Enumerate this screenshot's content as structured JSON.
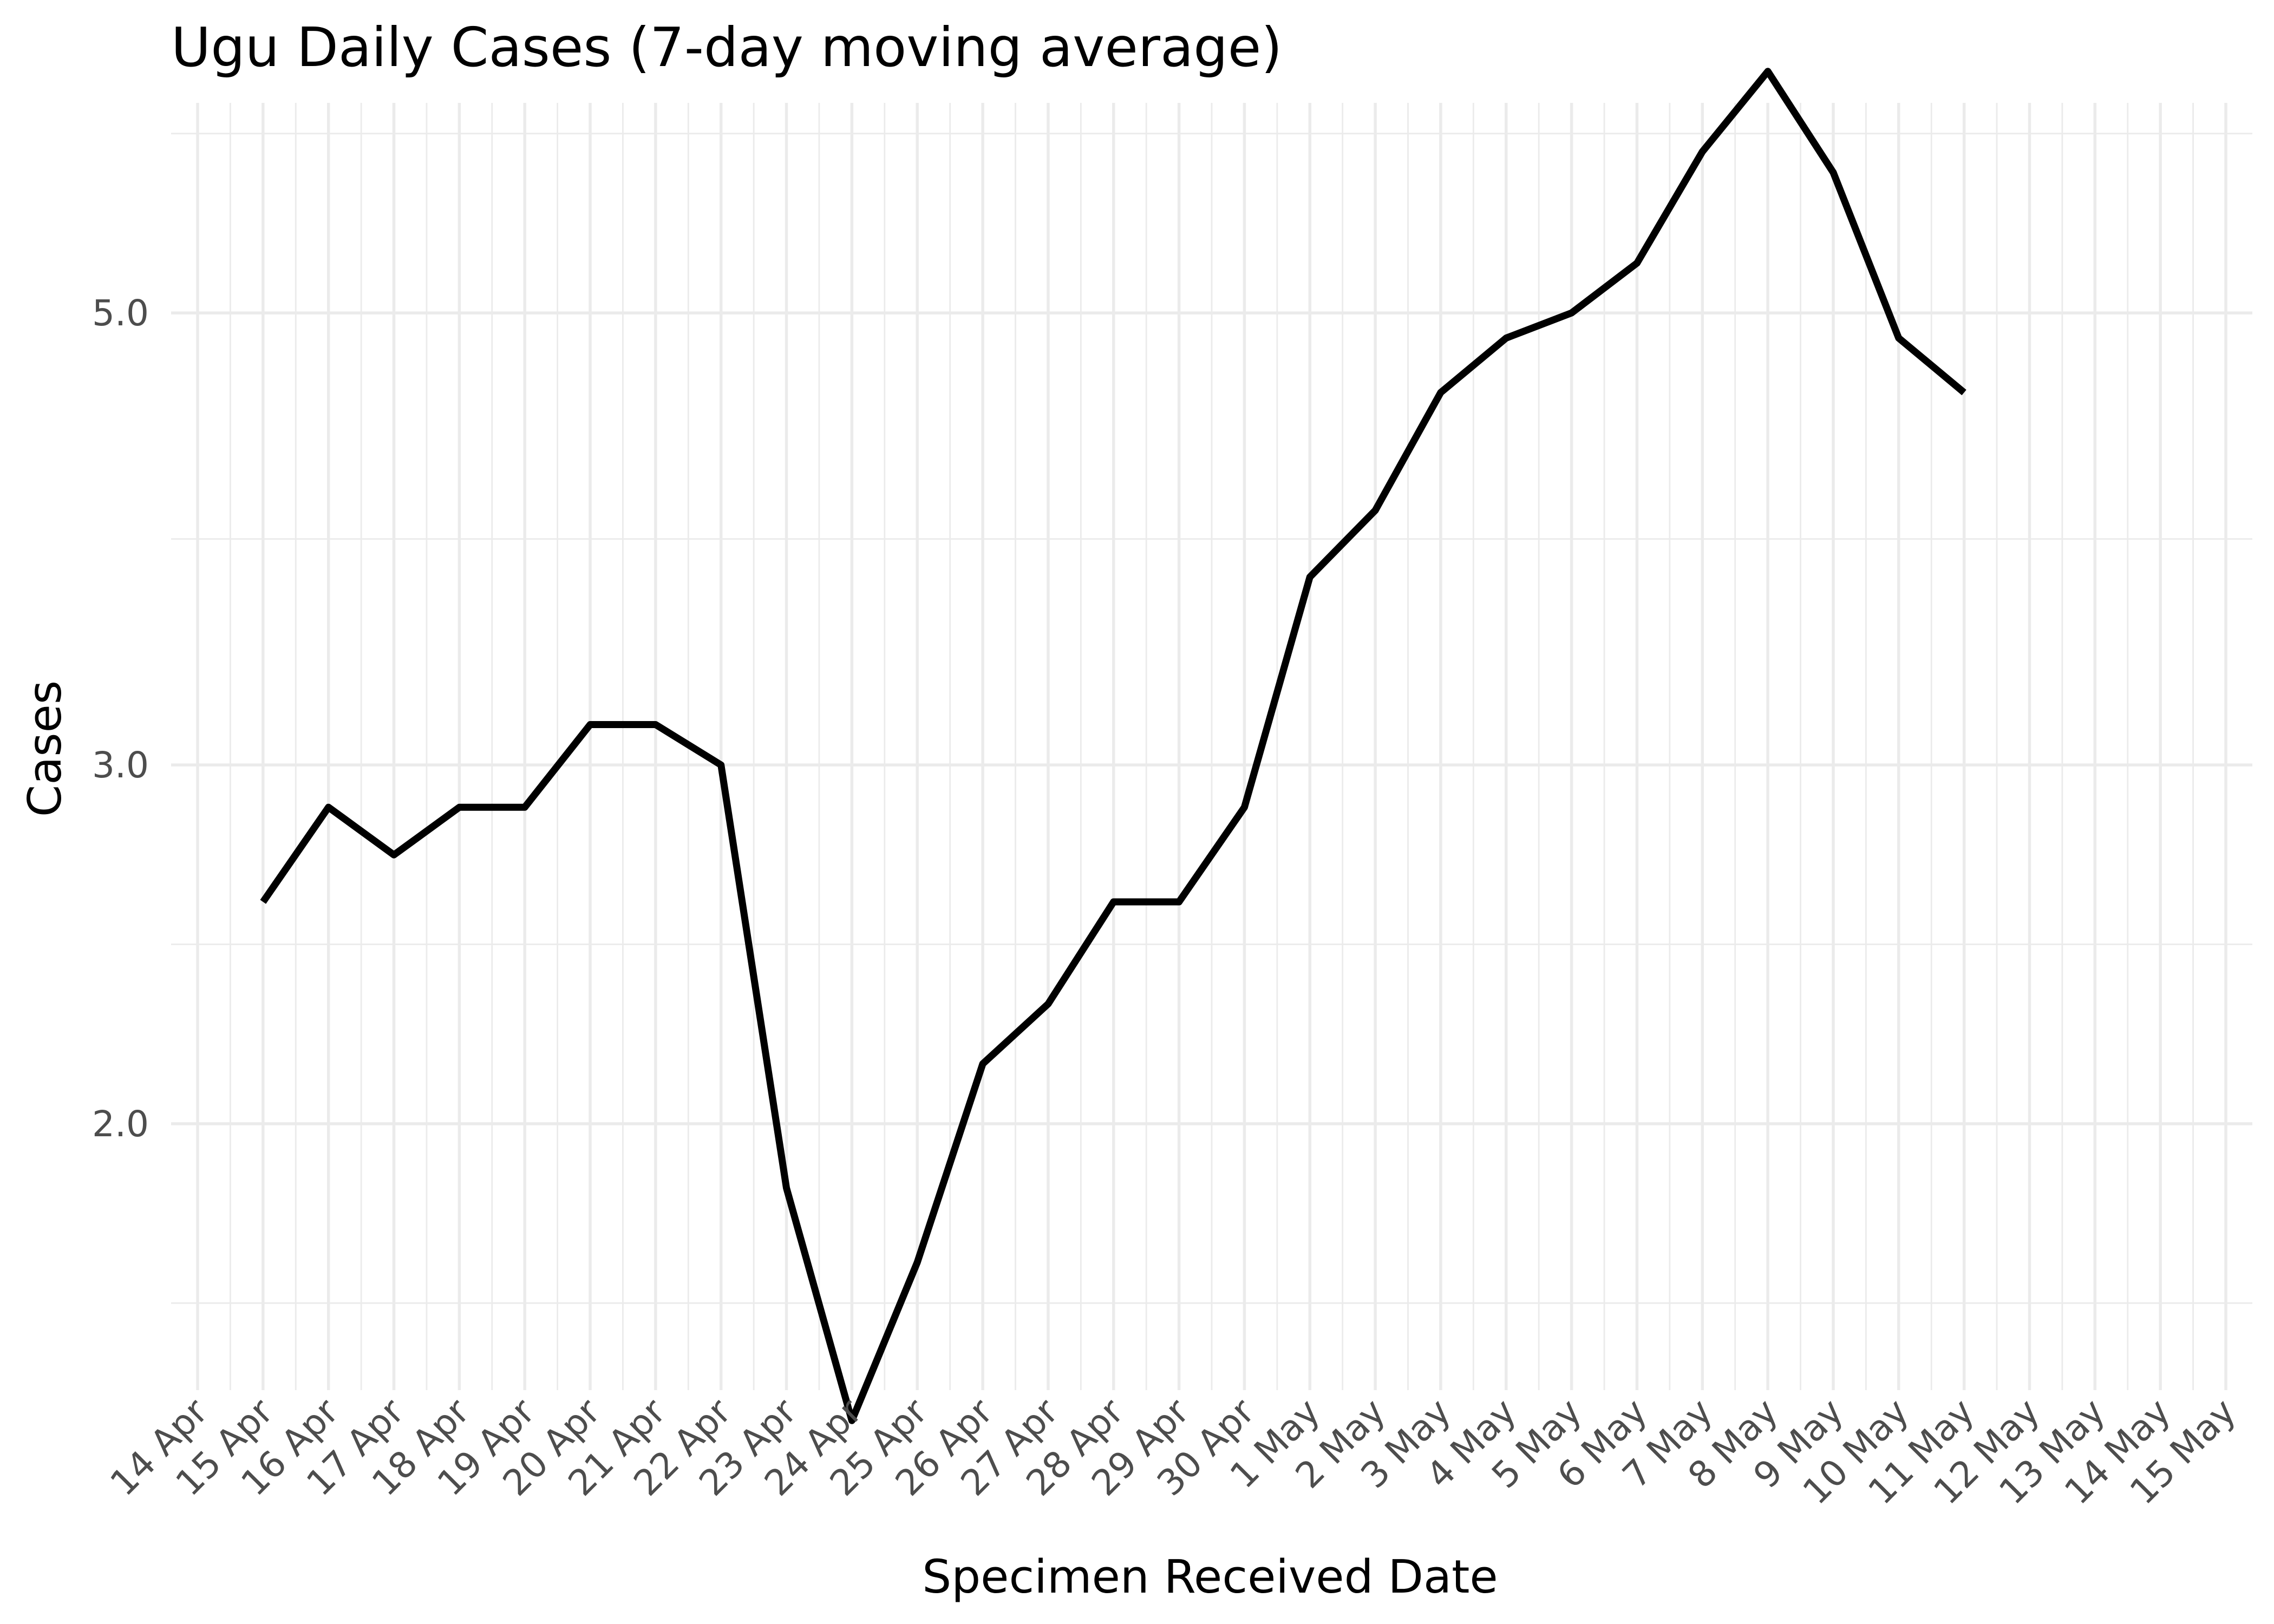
{
  "chart_data": {
    "type": "line",
    "title": "Ugu Daily Cases (7-day moving average)",
    "xlabel": "Specimen Received Date",
    "ylabel": "Cases",
    "y_scale": "log",
    "ylim": [
      1.48,
      6.34
    ],
    "y_ticks": [
      2.0,
      3.0,
      5.0
    ],
    "y_tick_labels": [
      "2.0",
      "3.0",
      "5.0"
    ],
    "x_range": [
      "2020-04-14",
      "2020-05-15"
    ],
    "x_tick_labels": [
      "14 Apr",
      "15 Apr",
      "16 Apr",
      "17 Apr",
      "18 Apr",
      "19 Apr",
      "20 Apr",
      "21 Apr",
      "22 Apr",
      "23 Apr",
      "24 Apr",
      "25 Apr",
      "26 Apr",
      "27 Apr",
      "28 Apr",
      "29 Apr",
      "30 Apr",
      "1 May",
      "2 May",
      "3 May",
      "4 May",
      "5 May",
      "6 May",
      "7 May",
      "8 May",
      "9 May",
      "10 May",
      "11 May",
      "12 May",
      "13 May",
      "14 May",
      "15 May"
    ],
    "grid": true,
    "legend": "none",
    "line_color": "#000000",
    "series": [
      {
        "x": [
          "2020-04-15",
          "2020-04-16",
          "2020-04-17",
          "2020-04-18",
          "2020-04-19",
          "2020-04-20",
          "2020-04-21",
          "2020-04-22",
          "2020-04-23",
          "2020-04-24",
          "2020-04-25",
          "2020-04-26",
          "2020-04-27",
          "2020-04-28",
          "2020-04-29",
          "2020-04-30",
          "2020-05-01",
          "2020-05-02",
          "2020-05-03",
          "2020-05-04",
          "2020-05-05",
          "2020-05-06",
          "2020-05-07",
          "2020-05-08",
          "2020-05-09",
          "2020-05-10",
          "2020-05-11"
        ],
        "values": [
          2.57,
          2.86,
          2.71,
          2.86,
          2.86,
          3.14,
          3.14,
          3.0,
          1.86,
          1.43,
          1.71,
          2.14,
          2.29,
          2.57,
          2.57,
          2.86,
          3.71,
          4.0,
          4.57,
          4.86,
          5.0,
          5.29,
          6.0,
          6.57,
          5.86,
          4.86,
          4.57
        ]
      }
    ]
  }
}
